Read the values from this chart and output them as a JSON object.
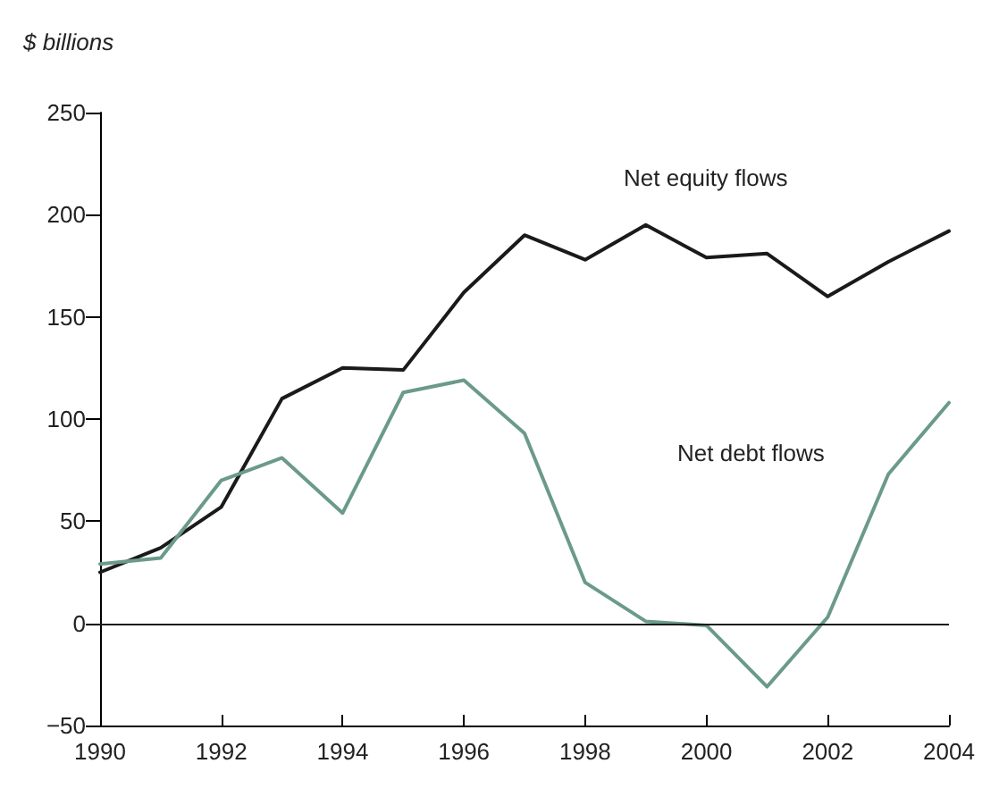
{
  "chart_data": {
    "type": "line",
    "ylabel": "$ billions",
    "x": [
      1990,
      1991,
      1992,
      1993,
      1994,
      1995,
      1996,
      1997,
      1998,
      1999,
      2000,
      2001,
      2002,
      2003,
      2004
    ],
    "series": [
      {
        "name": "Net equity flows",
        "color": "#1a1a1a",
        "values": [
          25,
          37,
          57,
          110,
          125,
          124,
          162,
          190,
          178,
          195,
          179,
          181,
          160,
          177,
          192
        ]
      },
      {
        "name": "Net debt flows",
        "color": "#6b9a8a",
        "values": [
          29,
          32,
          70,
          81,
          54,
          113,
          119,
          93,
          20,
          1,
          -1,
          -31,
          3,
          73,
          108
        ]
      }
    ],
    "xlim": [
      1990,
      2004
    ],
    "xticks": [
      1990,
      1992,
      1994,
      1996,
      1998,
      2000,
      2002,
      2004
    ],
    "ylim": [
      -50,
      250
    ],
    "yticks": [
      -50,
      0,
      50,
      100,
      150,
      200,
      250
    ],
    "ref_lines": [
      {
        "axis": "y",
        "value": 0,
        "color": "#1a1a1a"
      }
    ],
    "grid": false,
    "legend": false,
    "marker": "none",
    "line_style": "solid"
  }
}
